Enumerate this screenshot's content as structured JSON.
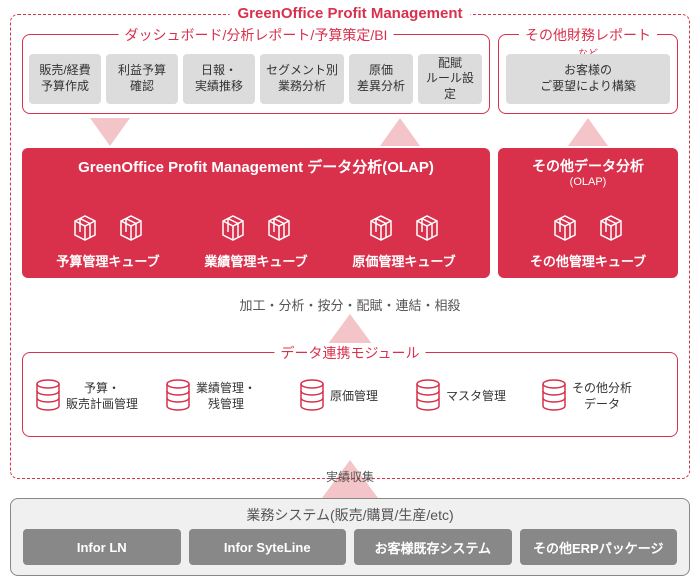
{
  "colors": {
    "red": "#d9304c",
    "arrow": "#f4c5c8",
    "gray_card": "#dcdcdc",
    "sys_card": "#888888",
    "bg": "#ffffff"
  },
  "outer": {
    "title": "GreenOffice Profit Management"
  },
  "dashboard": {
    "title": "ダッシュボード/分析レポート/予算策定/BI",
    "cards": [
      "販売/経費\n予算作成",
      "利益予算\n確認",
      "日報・\n実績推移",
      "セグメント別\n業務分析",
      "原価\n差異分析",
      "配賦\nルール設定"
    ]
  },
  "other_report": {
    "title": "その他財務レポート",
    "sub": "など",
    "card": "お客様の\nご要望により構築"
  },
  "olap_main": {
    "title": "GreenOffice Profit Management  データ分析(OLAP)",
    "cubes": [
      "予算管理キューブ",
      "業績管理キューブ",
      "原価管理キューブ"
    ]
  },
  "olap_side": {
    "title": "その他データ分析",
    "sub": "(OLAP)",
    "cube": "その他管理キューブ"
  },
  "processing": "加工・分析・按分・配賦・連結・相殺",
  "link_module": {
    "title": "データ連携モジュール",
    "items": [
      "予算・\n販売計画管理",
      "業績管理・\n残管理",
      "原価管理",
      "マスタ管理",
      "その他分析\nデータ"
    ]
  },
  "collect": "実績収集",
  "system": {
    "title": "業務システム(販売/購買/生産/etc)",
    "cards": [
      "Infor LN",
      "Infor SyteLine",
      "お客様既存システム",
      "その他ERPパッケージ"
    ]
  }
}
